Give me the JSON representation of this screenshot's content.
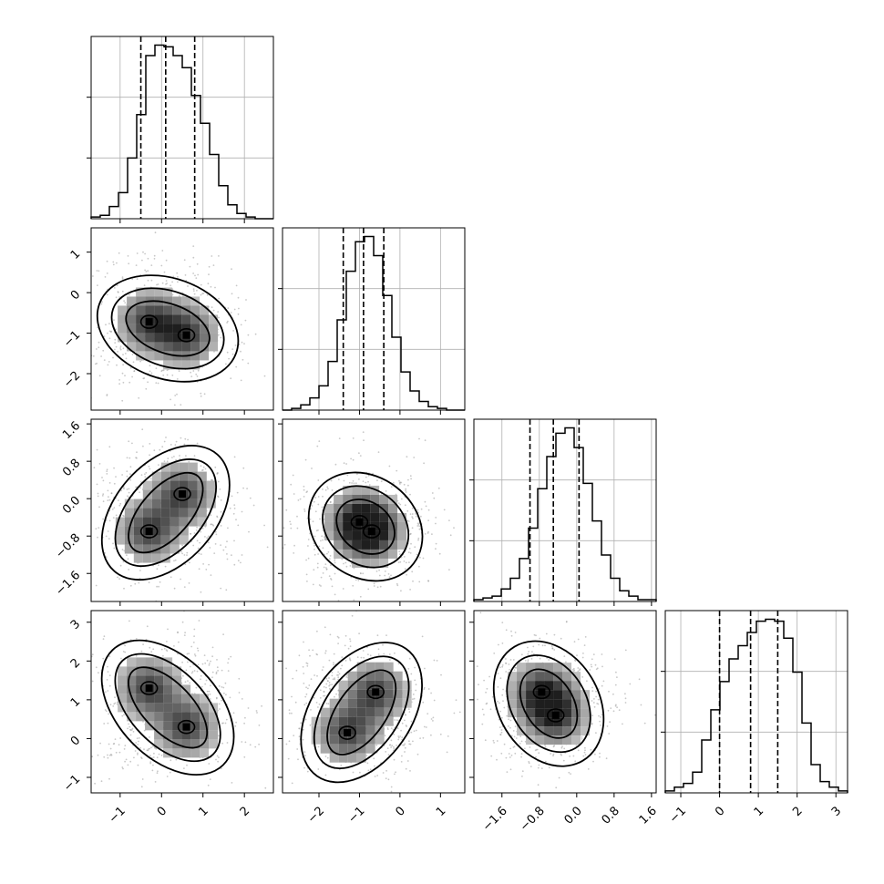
{
  "chart_data": {
    "type": "corner",
    "title": "",
    "grid": true,
    "dimensions": [
      {
        "range": [
          -1.7,
          2.7
        ],
        "ticks": [
          -1,
          0,
          1,
          2
        ],
        "tick_labels": [
          "−1",
          "0",
          "1",
          "2"
        ]
      },
      {
        "range": [
          -2.9,
          1.6
        ],
        "ticks": [
          -2,
          -1,
          0,
          1
        ],
        "tick_labels": [
          "−2",
          "−1",
          "0",
          "1"
        ]
      },
      {
        "range": [
          -2.2,
          1.7
        ],
        "ticks": [
          -1.6,
          -0.8,
          0.0,
          0.8,
          1.6
        ],
        "tick_labels": [
          "−1.6",
          "−0.8",
          "0.0",
          "0.8",
          "1.6"
        ]
      },
      {
        "range": [
          -1.4,
          3.3
        ],
        "ticks": [
          -1,
          0,
          1,
          2,
          3
        ],
        "tick_labels": [
          "−1",
          "0",
          "1",
          "2",
          "3"
        ]
      }
    ],
    "histograms": [
      {
        "dim": 0,
        "edges_start": -1.7,
        "edges_end": 2.7,
        "counts": [
          1,
          2,
          7,
          15,
          35,
          60,
          94,
          100,
          99,
          94,
          87,
          71,
          55,
          37,
          19,
          8,
          3,
          1,
          0,
          0
        ],
        "quantiles": [
          -0.5,
          0.1,
          0.8
        ]
      },
      {
        "dim": 1,
        "edges_start": -2.9,
        "edges_end": 1.6,
        "counts": [
          0,
          1,
          3,
          7,
          14,
          28,
          52,
          80,
          97,
          100,
          89,
          66,
          42,
          22,
          11,
          5,
          2,
          1,
          0,
          0
        ],
        "quantiles": [
          -1.4,
          -0.9,
          -0.4
        ]
      },
      {
        "dim": 2,
        "edges_start": -2.2,
        "edges_end": 1.7,
        "counts": [
          1,
          2,
          3,
          7,
          13,
          24,
          41,
          63,
          81,
          94,
          97,
          86,
          66,
          45,
          26,
          13,
          6,
          3,
          1,
          1
        ],
        "quantiles": [
          -1.0,
          -0.5,
          0.05
        ]
      },
      {
        "dim": 3,
        "edges_start": -1.4,
        "edges_end": 3.3,
        "counts": [
          1,
          3,
          5,
          11,
          28,
          44,
          59,
          71,
          78,
          85,
          91,
          92,
          91,
          82,
          64,
          37,
          15,
          6,
          3,
          1
        ],
        "quantiles": [
          0.0,
          0.8,
          1.5
        ]
      }
    ],
    "pairs": [
      {
        "x_dim": 0,
        "y_dim": 1,
        "modes": [
          [
            -0.3,
            -0.72
          ],
          [
            0.6,
            -1.05
          ]
        ]
      },
      {
        "x_dim": 0,
        "y_dim": 2,
        "modes": [
          [
            -0.3,
            -0.7
          ],
          [
            0.5,
            0.1
          ]
        ]
      },
      {
        "x_dim": 1,
        "y_dim": 2,
        "modes": [
          [
            -1.0,
            -0.5
          ],
          [
            -0.7,
            -0.7
          ]
        ]
      },
      {
        "x_dim": 0,
        "y_dim": 3,
        "modes": [
          [
            -0.3,
            1.3
          ],
          [
            0.6,
            0.3
          ]
        ]
      },
      {
        "x_dim": 1,
        "y_dim": 3,
        "modes": [
          [
            -1.3,
            0.15
          ],
          [
            -0.6,
            1.2
          ]
        ]
      },
      {
        "x_dim": 2,
        "y_dim": 3,
        "modes": [
          [
            -0.75,
            1.2
          ],
          [
            -0.45,
            0.6
          ]
        ]
      }
    ]
  }
}
